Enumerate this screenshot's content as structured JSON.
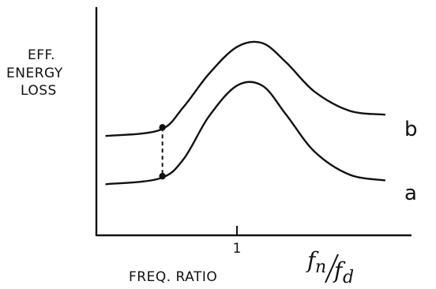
{
  "chart_data": {
    "type": "line",
    "title": "",
    "ylabel_lines": [
      "EFF.",
      "ENERGY",
      "LOSS"
    ],
    "xlabel": "FREQ. RATIO",
    "x_unit": {
      "numerator": "f",
      "numerator_sub": "n",
      "denominator": "f",
      "denominator_sub": "d"
    },
    "x_ticks": [
      {
        "value": 1,
        "label": "1"
      }
    ],
    "xlim": [
      0,
      2
    ],
    "ylim": [
      0,
      1
    ],
    "grid": false,
    "legend": "none",
    "series": [
      {
        "name": "b",
        "x": [
          0.07,
          0.45,
          0.62,
          0.8,
          1.0,
          1.18,
          1.35,
          1.55,
          1.8,
          2.05
        ],
        "y": [
          0.42,
          0.45,
          0.57,
          0.74,
          0.88,
          0.9,
          0.8,
          0.65,
          0.55,
          0.53
        ]
      },
      {
        "name": "a",
        "x": [
          0.07,
          0.45,
          0.62,
          0.8,
          1.0,
          1.18,
          1.35,
          1.55,
          1.8,
          2.05
        ],
        "y": [
          0.17,
          0.2,
          0.3,
          0.52,
          0.68,
          0.68,
          0.53,
          0.34,
          0.22,
          0.19
        ]
      }
    ],
    "markers": [
      {
        "series": "b",
        "x": 0.47
      },
      {
        "series": "a",
        "x": 0.47
      }
    ],
    "dashed_connector": {
      "x": 0.47
    }
  }
}
